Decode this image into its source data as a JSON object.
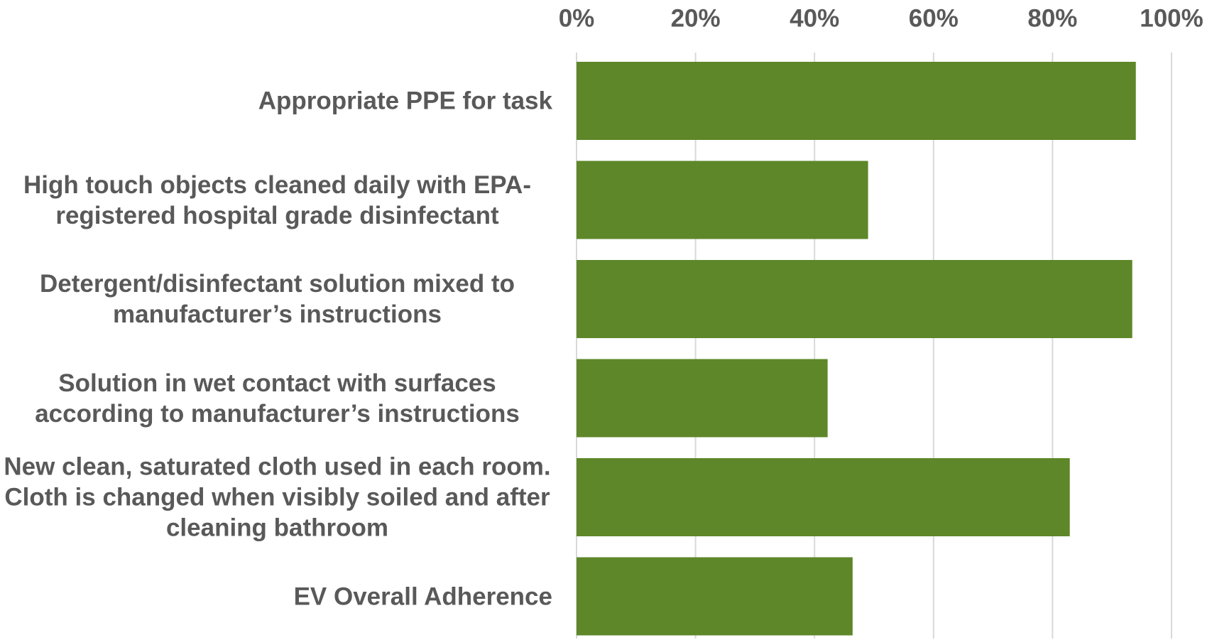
{
  "chart_data": {
    "type": "barh",
    "categories": [
      "Appropriate PPE for task",
      "High touch objects cleaned daily with EPA-registered hospital grade disinfectant",
      "Detergent/disinfectant solution mixed to manufacturer’s instructions",
      "Solution in wet contact with surfaces according to manufacturer’s instructions",
      "New clean, saturated cloth used in each room. Cloth is changed when visibly soiled and after cleaning bathroom",
      "EV Overall Adherence"
    ],
    "values": [
      94.0,
      49.0,
      93.4,
      42.2,
      82.9,
      46.4
    ],
    "color": "#5e8729",
    "xlim": [
      0,
      100
    ],
    "xticks": [
      {
        "value": 0,
        "label": "0%"
      },
      {
        "value": 20,
        "label": "20%"
      },
      {
        "value": 40,
        "label": "40%"
      },
      {
        "value": 60,
        "label": "60%"
      },
      {
        "value": 80,
        "label": "80%"
      },
      {
        "value": 100,
        "label": "100%"
      }
    ],
    "grid": true
  }
}
